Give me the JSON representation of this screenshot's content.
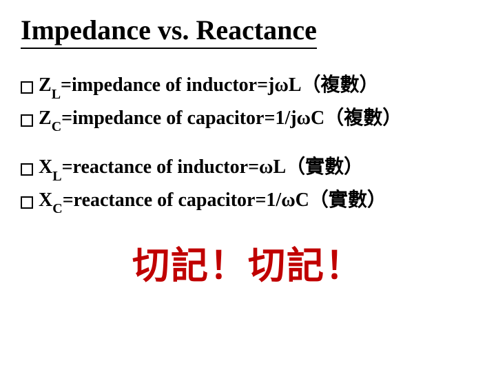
{
  "title": "Impedance vs. Reactance",
  "group1": {
    "item1": {
      "var": "Z",
      "sub": "L",
      "rest": "=impedance of inductor=jωL（複數）"
    },
    "item2": {
      "var": "Z",
      "sub": "C",
      "rest": "=impedance of capacitor=1/jωC（複數）"
    }
  },
  "group2": {
    "item1": {
      "var": "X",
      "sub": "L",
      "rest": "=reactance of inductor=ωL（實數）"
    },
    "item2": {
      "var": "X",
      "sub": "C",
      "rest": "=reactance of capacitor=1/ωC（實數）"
    }
  },
  "emphasis": "切記！切記！",
  "colors": {
    "text": "#000000",
    "emphasis": "#c00000",
    "background": "#ffffff"
  },
  "typography": {
    "title_fontsize": 40,
    "bullet_fontsize": 28,
    "sub_fontsize": 20,
    "emphasis_fontsize": 54
  }
}
